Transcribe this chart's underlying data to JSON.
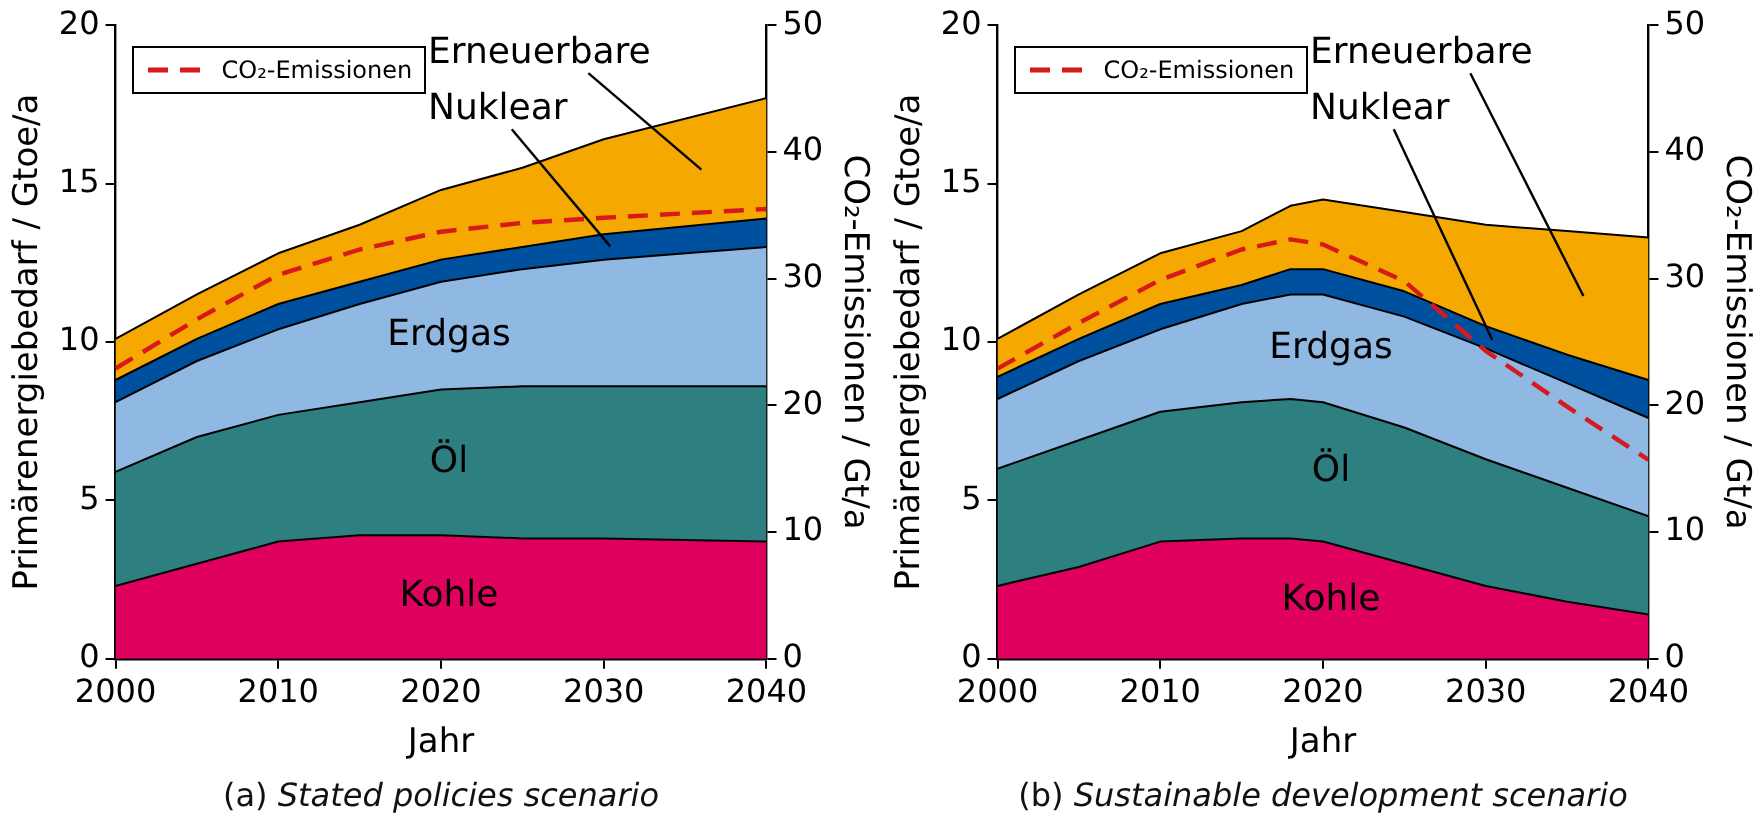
{
  "chart_data": [
    {
      "type": "area",
      "stacked": true,
      "xlabel": "Jahr",
      "ylabel": "Primärenergiebedarf / Gtoe/a",
      "y2label": "CO₂-Emissionen / Gt/a",
      "x": [
        2000,
        2005,
        2010,
        2015,
        2020,
        2025,
        2030,
        2040
      ],
      "xlim": [
        2000,
        2040
      ],
      "xticks": [
        2000,
        2010,
        2020,
        2030,
        2040
      ],
      "ylim": [
        0,
        20
      ],
      "yticks": [
        0,
        5,
        10,
        15,
        20
      ],
      "y2lim": [
        0,
        50
      ],
      "y2ticks": [
        0,
        10,
        20,
        30,
        40,
        50
      ],
      "grid": false,
      "legend": "top left",
      "series": [
        {
          "name": "Kohle",
          "color": "#e0005e",
          "values": [
            2.3,
            3.0,
            3.7,
            3.9,
            3.9,
            3.8,
            3.8,
            3.7
          ]
        },
        {
          "name": "Öl",
          "color": "#2e7f80",
          "values": [
            3.6,
            4.0,
            4.0,
            4.2,
            4.6,
            4.8,
            4.8,
            4.9
          ]
        },
        {
          "name": "Erdgas",
          "color": "#8fb8e3",
          "values": [
            2.2,
            2.4,
            2.7,
            3.1,
            3.4,
            3.7,
            4.0,
            4.4
          ]
        },
        {
          "name": "Nuklear",
          "color": "#0050a0",
          "values": [
            0.7,
            0.7,
            0.8,
            0.7,
            0.7,
            0.7,
            0.8,
            0.9
          ]
        },
        {
          "name": "Erneuerbare",
          "color": "#f5a800",
          "values": [
            1.3,
            1.4,
            1.6,
            1.8,
            2.2,
            2.5,
            3.0,
            3.8
          ]
        },
        {
          "name": "CO₂-Emissionen",
          "type": "line",
          "axis": "y2",
          "line_style": "dashed",
          "color": "#d7191c",
          "values": [
            22.9,
            26.8,
            30.3,
            32.3,
            33.7,
            34.4,
            34.8,
            35.5
          ]
        }
      ],
      "annotations": [
        "(a) Stated policies scenario"
      ]
    },
    {
      "type": "area",
      "stacked": true,
      "xlabel": "Jahr",
      "ylabel": "Primärenergiebedarf / Gtoe/a",
      "y2label": "CO₂-Emissionen / Gt/a",
      "x": [
        2000,
        2005,
        2010,
        2015,
        2018,
        2020,
        2025,
        2030,
        2035,
        2040
      ],
      "xlim": [
        2000,
        2040
      ],
      "xticks": [
        2000,
        2010,
        2020,
        2030,
        2040
      ],
      "ylim": [
        0,
        20
      ],
      "yticks": [
        0,
        5,
        10,
        15,
        20
      ],
      "y2lim": [
        0,
        50
      ],
      "y2ticks": [
        0,
        10,
        20,
        30,
        40,
        50
      ],
      "grid": false,
      "legend": "top left",
      "series": [
        {
          "name": "Kohle",
          "color": "#e0005e",
          "values": [
            2.3,
            2.9,
            3.7,
            3.8,
            3.8,
            3.7,
            3.0,
            2.3,
            1.8,
            1.4
          ]
        },
        {
          "name": "Öl",
          "color": "#2e7f80",
          "values": [
            3.7,
            4.0,
            4.1,
            4.3,
            4.4,
            4.4,
            4.3,
            4.0,
            3.6,
            3.1
          ]
        },
        {
          "name": "Erdgas",
          "color": "#8fb8e3",
          "values": [
            2.2,
            2.5,
            2.6,
            3.1,
            3.3,
            3.4,
            3.5,
            3.5,
            3.3,
            3.1
          ]
        },
        {
          "name": "Nuklear",
          "color": "#0050a0",
          "values": [
            0.7,
            0.7,
            0.8,
            0.6,
            0.8,
            0.8,
            0.8,
            0.7,
            0.9,
            1.2
          ]
        },
        {
          "name": "Erneuerbare",
          "color": "#f5a800",
          "values": [
            1.2,
            1.4,
            1.6,
            1.7,
            2.0,
            2.2,
            2.5,
            3.2,
            3.9,
            4.5
          ]
        },
        {
          "name": "CO₂-Emissionen",
          "type": "line",
          "axis": "y2",
          "line_style": "dashed",
          "color": "#d7191c",
          "values": [
            22.9,
            26.5,
            29.9,
            32.3,
            33.1,
            32.7,
            29.8,
            24.3,
            19.9,
            15.7
          ]
        }
      ],
      "annotations": [
        "(b) Sustainable development scenario"
      ]
    }
  ]
}
